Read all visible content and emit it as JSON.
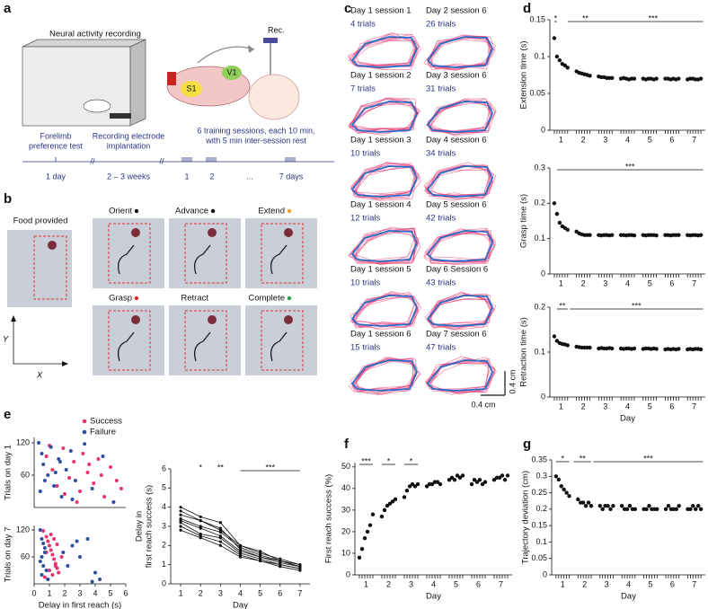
{
  "panels": {
    "letters": [
      "a",
      "b",
      "c",
      "d",
      "e",
      "f",
      "g"
    ],
    "a": {
      "recording": "Neural activity recording",
      "rec": "Rec.",
      "areas": [
        "S1",
        "V1"
      ],
      "steps": [
        [
          "Forelimb",
          "preference test"
        ],
        [
          "Recording electrode",
          "implantation"
        ],
        [
          "6 training sessions, each 10 min,",
          "with 5 min inter-session rest"
        ]
      ],
      "timeline": [
        "1 day",
        "2 – 3 weeks",
        "1",
        "2",
        "...",
        "7 days"
      ]
    },
    "b": {
      "food": "Food provided",
      "phases": [
        {
          "label": "Orient",
          "dot": "#111111"
        },
        {
          "label": "Advance",
          "dot": "#111111"
        },
        {
          "label": "Extend",
          "dot": "#f0a030"
        },
        {
          "label": "Grasp",
          "dot": "#d62a2a"
        },
        {
          "label": "Retract"
        },
        {
          "label": "Complete",
          "dot": "#2a9d4a"
        }
      ],
      "axes": [
        "X",
        "Y"
      ]
    },
    "c": {
      "cells": [
        {
          "title": "Day 1 session 1",
          "trials": "4 trials"
        },
        {
          "title": "Day 1 session 2",
          "trials": "7 trials"
        },
        {
          "title": "Day 1 session 3",
          "trials": "10 trials"
        },
        {
          "title": "Day 1 session 4",
          "trials": "12 trials"
        },
        {
          "title": "Day 1 session 5",
          "trials": "10 trials"
        },
        {
          "title": "Day 1 session 6",
          "trials": "15 trials"
        },
        {
          "title": "Day 2 session 6",
          "trials": "26 trials"
        },
        {
          "title": "Day 3 session 6",
          "trials": "31 trials"
        },
        {
          "title": "Day 4 session 6",
          "trials": "34 trials"
        },
        {
          "title": "Day 5 session 6",
          "trials": "42 trials"
        },
        {
          "title": "Day 6 Session 6",
          "trials": "43 trials"
        },
        {
          "title": "Day 7 session 6",
          "trials": "47 trials"
        }
      ],
      "scale": "0.4 cm"
    }
  },
  "chart_data": [
    {
      "type": "scatter",
      "ylabel": "Extension time (s)",
      "color": "#111111",
      "x_minor_ticks": true,
      "x": [
        0.7,
        0.82,
        0.94,
        1.06,
        1.18,
        1.3,
        1.7,
        1.82,
        1.94,
        2.06,
        2.18,
        2.3,
        2.7,
        2.82,
        2.94,
        3.06,
        3.18,
        3.3,
        3.7,
        3.82,
        3.94,
        4.06,
        4.18,
        4.3,
        4.7,
        4.82,
        4.94,
        5.06,
        5.18,
        5.3,
        5.7,
        5.82,
        5.94,
        6.06,
        6.18,
        6.3,
        6.7,
        6.82,
        6.94,
        7.06,
        7.18,
        7.3
      ],
      "values": [
        0.125,
        0.1,
        0.095,
        0.09,
        0.088,
        0.085,
        0.08,
        0.078,
        0.077,
        0.076,
        0.075,
        0.074,
        0.073,
        0.072,
        0.072,
        0.071,
        0.071,
        0.071,
        0.07,
        0.071,
        0.07,
        0.069,
        0.07,
        0.07,
        0.07,
        0.069,
        0.07,
        0.07,
        0.069,
        0.07,
        0.07,
        0.07,
        0.069,
        0.07,
        0.069,
        0.07,
        0.069,
        0.07,
        0.07,
        0.069,
        0.069,
        0.07
      ],
      "xlim": [
        0.5,
        7.5
      ],
      "xticks": [
        1,
        2,
        3,
        4,
        5,
        6,
        7
      ],
      "ylim": [
        0,
        0.15
      ],
      "yticks": [
        0,
        0.05,
        0.1,
        0.15
      ],
      "annotations": [
        {
          "text": "*",
          "from": 0.7,
          "to": 0.82
        },
        {
          "text": "**",
          "from": 1.3,
          "to": 2.9
        },
        {
          "text": "***",
          "from": 2.9,
          "to": 7.4
        }
      ]
    },
    {
      "type": "scatter",
      "ylabel": "Grasp time (s)",
      "color": "#111111",
      "x_minor_ticks": true,
      "x": [
        0.7,
        0.82,
        0.94,
        1.06,
        1.18,
        1.3,
        1.7,
        1.82,
        1.94,
        2.06,
        2.18,
        2.3,
        2.7,
        2.82,
        2.94,
        3.06,
        3.18,
        3.3,
        3.7,
        3.82,
        3.94,
        4.06,
        4.18,
        4.3,
        4.7,
        4.82,
        4.94,
        5.06,
        5.18,
        5.3,
        5.7,
        5.82,
        5.94,
        6.06,
        6.18,
        6.3,
        6.7,
        6.82,
        6.94,
        7.06,
        7.18,
        7.3
      ],
      "values": [
        0.2,
        0.17,
        0.145,
        0.135,
        0.13,
        0.125,
        0.12,
        0.115,
        0.112,
        0.11,
        0.11,
        0.11,
        0.11,
        0.109,
        0.11,
        0.11,
        0.109,
        0.11,
        0.11,
        0.11,
        0.109,
        0.11,
        0.11,
        0.109,
        0.11,
        0.109,
        0.11,
        0.11,
        0.11,
        0.109,
        0.11,
        0.11,
        0.109,
        0.11,
        0.11,
        0.11,
        0.11,
        0.109,
        0.11,
        0.11,
        0.109,
        0.11
      ],
      "xlim": [
        0.5,
        7.5
      ],
      "xticks": [
        1,
        2,
        3,
        4,
        5,
        6,
        7
      ],
      "ylim": [
        0,
        0.3
      ],
      "yticks": [
        0,
        0.1,
        0.2,
        0.3
      ],
      "annotations": [
        {
          "text": "***",
          "from": 0.82,
          "to": 7.4
        }
      ]
    },
    {
      "type": "scatter",
      "ylabel": "Retraction time (s)",
      "xlabel": "Day",
      "color": "#111111",
      "x_minor_ticks": true,
      "x": [
        0.7,
        0.82,
        0.94,
        1.06,
        1.18,
        1.3,
        1.7,
        1.82,
        1.94,
        2.06,
        2.18,
        2.3,
        2.7,
        2.82,
        2.94,
        3.06,
        3.18,
        3.3,
        3.7,
        3.82,
        3.94,
        4.06,
        4.18,
        4.3,
        4.7,
        4.82,
        4.94,
        5.06,
        5.18,
        5.3,
        5.7,
        5.82,
        5.94,
        6.06,
        6.18,
        6.3,
        6.7,
        6.82,
        6.94,
        7.06,
        7.18,
        7.3
      ],
      "values": [
        0.135,
        0.125,
        0.12,
        0.118,
        0.117,
        0.115,
        0.112,
        0.111,
        0.11,
        0.11,
        0.11,
        0.11,
        0.108,
        0.109,
        0.108,
        0.108,
        0.109,
        0.108,
        0.108,
        0.107,
        0.108,
        0.108,
        0.107,
        0.108,
        0.107,
        0.108,
        0.108,
        0.107,
        0.108,
        0.107,
        0.106,
        0.107,
        0.106,
        0.107,
        0.106,
        0.107,
        0.106,
        0.107,
        0.106,
        0.107,
        0.107,
        0.106
      ],
      "xlim": [
        0.5,
        7.5
      ],
      "xticks": [
        1,
        2,
        3,
        4,
        5,
        6,
        7
      ],
      "ylim": [
        0,
        0.2
      ],
      "yticks": [
        0,
        0.1,
        0.2
      ],
      "annotations": [
        {
          "text": "**",
          "from": 0.82,
          "to": 1.3
        },
        {
          "text": "***",
          "from": 1.4,
          "to": 7.4
        }
      ]
    },
    {
      "type": "scatter",
      "ylabel": "Trials on day 1",
      "legend": "top-right",
      "xlim": [
        0,
        6
      ],
      "ylim": [
        0,
        130
      ],
      "yticks": [
        60,
        120
      ],
      "series": [
        {
          "name": "Success",
          "color": "#e8336d",
          "x": [
            0.8,
            1.2,
            1.5,
            1.9,
            2.3,
            2.6,
            3.0,
            3.2,
            3.5,
            3.9,
            4.2,
            4.6,
            5.0,
            5.4,
            2.0,
            1.0,
            2.8,
            3.6,
            4.4,
            5.7
          ],
          "values": [
            95,
            70,
            40,
            110,
            55,
            85,
            30,
            100,
            65,
            45,
            90,
            20,
            75,
            50,
            25,
            115,
            10,
            80,
            60,
            35
          ]
        },
        {
          "name": "Failure",
          "color": "#2e4fa0",
          "x": [
            0.3,
            0.5,
            0.6,
            0.9,
            1.1,
            1.3,
            1.6,
            1.8,
            2.1,
            2.4,
            2.7,
            3.3,
            3.8,
            4.5,
            5.2,
            0.4,
            1.4,
            2.5,
            0.7,
            1.7
          ],
          "values": [
            120,
            100,
            80,
            60,
            112,
            40,
            90,
            20,
            70,
            105,
            50,
            118,
            35,
            95,
            10,
            30,
            65,
            15,
            50,
            85
          ]
        }
      ]
    },
    {
      "type": "scatter",
      "ylabel": "Trials on day 7",
      "xlabel": "Delay in first reach (s)",
      "xlim": [
        0,
        6
      ],
      "xticks": [
        0,
        1,
        2,
        3,
        4,
        5,
        6
      ],
      "ylim": [
        0,
        130
      ],
      "yticks": [
        60,
        120
      ],
      "series": [
        {
          "color": "#e8336d",
          "x": [
            0.6,
            0.8,
            0.9,
            1.0,
            1.1,
            1.2,
            1.3,
            1.4,
            1.5,
            1.6,
            0.7,
            0.9,
            1.1,
            1.3,
            1.5,
            1.8,
            1.0,
            1.2,
            0.8,
            1.4
          ],
          "values": [
            118,
            105,
            95,
            85,
            75,
            65,
            55,
            45,
            35,
            25,
            15,
            10,
            110,
            100,
            88,
            60,
            30,
            20,
            70,
            40
          ]
        },
        {
          "color": "#2e4fa0",
          "x": [
            0.4,
            0.5,
            0.6,
            0.7,
            0.5,
            0.6,
            0.8,
            0.9,
            2.5,
            3.0,
            3.5,
            2.2,
            4.0,
            4.3,
            3.8,
            0.4,
            0.7,
            2.8,
            1.9,
            0.5
          ],
          "values": [
            120,
            100,
            90,
            70,
            60,
            40,
            30,
            10,
            85,
            60,
            100,
            40,
            25,
            10,
            5,
            50,
            80,
            95,
            70,
            20
          ]
        }
      ]
    },
    {
      "type": "line",
      "ylabel": [
        "Delay in",
        "first reach success (s)"
      ],
      "xlabel": "Day",
      "x": [
        1,
        2,
        3,
        4,
        5,
        6,
        7
      ],
      "xlim": [
        0.5,
        7.5
      ],
      "xticks": [
        1,
        2,
        3,
        4,
        5,
        6,
        7
      ],
      "ylim": [
        0,
        6
      ],
      "yticks": [
        0,
        1,
        2,
        3,
        4,
        5,
        6
      ],
      "series": [
        {
          "color": "#111111",
          "values": [
            4.0,
            3.5,
            3.2,
            2.0,
            1.6,
            1.3,
            1.0
          ]
        },
        {
          "color": "#111111",
          "values": [
            3.8,
            3.3,
            2.8,
            2.0,
            1.7,
            1.2,
            1.0
          ]
        },
        {
          "color": "#111111",
          "values": [
            3.6,
            3.3,
            2.9,
            1.8,
            1.4,
            1.2,
            0.9
          ]
        },
        {
          "color": "#111111",
          "values": [
            3.4,
            3.0,
            2.7,
            1.9,
            1.5,
            1.2,
            0.9
          ]
        },
        {
          "color": "#111111",
          "values": [
            3.3,
            2.9,
            2.5,
            1.7,
            1.4,
            1.1,
            0.9
          ]
        },
        {
          "color": "#111111",
          "values": [
            3.2,
            2.6,
            2.4,
            1.6,
            1.3,
            1.0,
            0.8
          ]
        },
        {
          "color": "#111111",
          "values": [
            3.0,
            2.5,
            2.2,
            1.5,
            1.2,
            1.0,
            0.8
          ]
        },
        {
          "color": "#111111",
          "values": [
            2.8,
            2.4,
            2.0,
            1.4,
            1.2,
            0.9,
            0.7
          ]
        }
      ],
      "annotations": [
        {
          "text": "*",
          "from": 2,
          "to": 2
        },
        {
          "text": "**",
          "from": 3,
          "to": 3
        },
        {
          "text": "***",
          "from": 4,
          "to": 7
        }
      ]
    },
    {
      "type": "scatter",
      "ylabel": "First reach success (%)",
      "xlabel": "Day",
      "color": "#111111",
      "x_minor_ticks": true,
      "x": [
        0.7,
        0.82,
        0.94,
        1.06,
        1.18,
        1.3,
        1.7,
        1.82,
        1.94,
        2.06,
        2.18,
        2.3,
        2.7,
        2.82,
        2.94,
        3.06,
        3.18,
        3.3,
        3.7,
        3.82,
        3.94,
        4.06,
        4.18,
        4.3,
        4.7,
        4.82,
        4.94,
        5.06,
        5.18,
        5.3,
        5.7,
        5.82,
        5.94,
        6.06,
        6.18,
        6.3,
        6.7,
        6.82,
        6.94,
        7.06,
        7.18,
        7.3
      ],
      "values": [
        8,
        12,
        17,
        20,
        23,
        28,
        27,
        30,
        32,
        33,
        34,
        35,
        36,
        39,
        41,
        42,
        41,
        42,
        41,
        42,
        42,
        43,
        43,
        42,
        44,
        45,
        44,
        46,
        45,
        46,
        42,
        44,
        43,
        44,
        42,
        43,
        44,
        45,
        45,
        46,
        44,
        46
      ],
      "xlim": [
        0.5,
        7.5
      ],
      "xticks": [
        1,
        2,
        3,
        4,
        5,
        6,
        7
      ],
      "ylim": [
        0,
        52
      ],
      "yticks": [
        0,
        10,
        20,
        30,
        40,
        50
      ],
      "annotations": [
        {
          "text": "***",
          "from": 0.7,
          "to": 1.3
        },
        {
          "text": "*",
          "from": 1.7,
          "to": 2.3
        },
        {
          "text": "*",
          "from": 2.7,
          "to": 3.3
        }
      ]
    },
    {
      "type": "scatter",
      "ylabel": "Trajectory deviation (cm)",
      "xlabel": "Day",
      "color": "#111111",
      "x_minor_ticks": true,
      "x": [
        0.7,
        0.82,
        0.94,
        1.06,
        1.18,
        1.3,
        1.7,
        1.82,
        1.94,
        2.06,
        2.18,
        2.3,
        2.7,
        2.82,
        2.94,
        3.06,
        3.18,
        3.3,
        3.7,
        3.82,
        3.94,
        4.06,
        4.18,
        4.3,
        4.7,
        4.82,
        4.94,
        5.06,
        5.18,
        5.3,
        5.7,
        5.82,
        5.94,
        6.06,
        6.18,
        6.3,
        6.7,
        6.82,
        6.94,
        7.06,
        7.18,
        7.3
      ],
      "values": [
        0.3,
        0.29,
        0.27,
        0.26,
        0.25,
        0.24,
        0.23,
        0.22,
        0.22,
        0.21,
        0.22,
        0.21,
        0.21,
        0.2,
        0.21,
        0.21,
        0.2,
        0.21,
        0.21,
        0.2,
        0.2,
        0.21,
        0.2,
        0.2,
        0.2,
        0.2,
        0.21,
        0.2,
        0.2,
        0.2,
        0.2,
        0.21,
        0.2,
        0.2,
        0.2,
        0.21,
        0.2,
        0.2,
        0.21,
        0.2,
        0.21,
        0.2
      ],
      "xlim": [
        0.5,
        7.5
      ],
      "xticks": [
        1,
        2,
        3,
        4,
        5,
        6,
        7
      ],
      "ylim": [
        0,
        0.35
      ],
      "yticks": [
        0,
        0.05,
        0.1,
        0.15,
        0.2,
        0.25,
        0.3,
        0.35
      ],
      "annotations": [
        {
          "text": "*",
          "from": 0.7,
          "to": 1.3
        },
        {
          "text": "**",
          "from": 1.5,
          "to": 2.3
        },
        {
          "text": "***",
          "from": 2.4,
          "to": 7.4
        }
      ]
    }
  ]
}
